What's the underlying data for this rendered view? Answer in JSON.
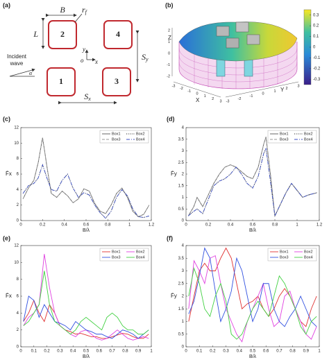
{
  "diagram": {
    "panel_label": "(a)",
    "width_label": "B",
    "radius_label": {
      "base": "r",
      "sub": "f"
    },
    "length_label": "L",
    "boxes": [
      "2",
      "4",
      "1",
      "3"
    ],
    "sy_label": {
      "base": "S",
      "sub": "y"
    },
    "sx_label": {
      "base": "S",
      "sub": "x"
    },
    "axis_y": "y",
    "axis_o": "o",
    "axis_x": "x",
    "incident": [
      "Incident",
      "wave"
    ],
    "angle": "α"
  },
  "surface_plot": {
    "panel_label": "(b)",
    "zlabel": "Z",
    "xlabel": "X",
    "ylabel": "Y",
    "xticks": [
      -3,
      -2,
      -1,
      0,
      1,
      2,
      3
    ],
    "yticks": [
      -3,
      -2,
      -1,
      0,
      1,
      2,
      3
    ],
    "zticks": [
      -2,
      -1,
      0,
      1,
      2
    ],
    "colorbar": {
      "range": [
        -0.35,
        0.35
      ],
      "ticks": [
        0.3,
        0.2,
        0.1,
        0,
        -0.1,
        -0.2,
        -0.3
      ]
    }
  },
  "chart_data": [
    {
      "type": "line",
      "panel_label": "(c)",
      "xlabel": "B/λ",
      "ylabel": "F̄x",
      "xlim": [
        0,
        1.2
      ],
      "ylim": [
        0,
        12
      ],
      "xticks": [
        0,
        0.2,
        0.4,
        0.6,
        0.8,
        1,
        1.2
      ],
      "yticks": [
        0,
        2,
        4,
        6,
        8,
        10,
        12
      ],
      "legend": "upper right",
      "x": [
        0.02,
        0.07,
        0.12,
        0.16,
        0.2,
        0.24,
        0.28,
        0.33,
        0.38,
        0.43,
        0.48,
        0.53,
        0.58,
        0.63,
        0.68,
        0.73,
        0.78,
        0.83,
        0.88,
        0.93,
        0.98,
        1.03,
        1.08,
        1.13,
        1.18
      ],
      "series": [
        {
          "name": "Box1",
          "color": "#555555",
          "style": "solid",
          "values": [
            2.8,
            4.2,
            5.2,
            7.5,
            10.7,
            7,
            3.5,
            3,
            3.8,
            3.2,
            2.3,
            2.8,
            4.1,
            3.8,
            2.2,
            1.2,
            0.9,
            2,
            3.5,
            4.2,
            3,
            1.2,
            0.5,
            0.8,
            2
          ]
        },
        {
          "name": "Box2",
          "color": "#222222",
          "style": "dotted",
          "values": [
            3.5,
            4.5,
            4.8,
            5.5,
            7.2,
            5.5,
            4,
            3.8,
            5.2,
            6,
            4.2,
            3,
            3.6,
            3.3,
            2,
            1,
            0.3,
            1.2,
            3,
            4,
            3.2,
            1.5,
            0.5,
            0.4,
            0.6
          ]
        },
        {
          "name": "Box3",
          "color": "#999999",
          "style": "dashed",
          "values": [
            2.8,
            4.2,
            5.2,
            7.5,
            10.7,
            7,
            3.5,
            3,
            3.8,
            3.2,
            2.3,
            2.8,
            4.1,
            3.8,
            2.2,
            1.2,
            0.9,
            2,
            3.5,
            4.2,
            3,
            1.2,
            0.5,
            0.8,
            2
          ]
        },
        {
          "name": "Box4",
          "color": "#3b4fc4",
          "style": "dashdot",
          "values": [
            3.5,
            4.5,
            4.8,
            5.5,
            7.2,
            5.5,
            4,
            3.8,
            5.2,
            6,
            4.2,
            3,
            3.6,
            3.3,
            2,
            1,
            0.3,
            1.2,
            3,
            4,
            3.2,
            1.5,
            0.5,
            0.4,
            0.6
          ]
        }
      ]
    },
    {
      "type": "line",
      "panel_label": "(d)",
      "xlabel": "B/λ",
      "ylabel": "F̄y",
      "xlim": [
        0,
        1.2
      ],
      "ylim": [
        0,
        4
      ],
      "xticks": [
        0,
        0.2,
        0.4,
        0.6,
        0.8,
        1,
        1.2
      ],
      "yticks": [
        0,
        0.5,
        1,
        1.5,
        2,
        2.5,
        3,
        3.5,
        4
      ],
      "legend": "upper right",
      "x": [
        0.02,
        0.07,
        0.1,
        0.15,
        0.2,
        0.25,
        0.3,
        0.35,
        0.4,
        0.45,
        0.5,
        0.55,
        0.6,
        0.65,
        0.7,
        0.72,
        0.76,
        0.8,
        0.85,
        0.9,
        0.95,
        1,
        1.05,
        1.1,
        1.18
      ],
      "series": [
        {
          "name": "Box1",
          "color": "#555555",
          "style": "solid",
          "values": [
            0.2,
            0.6,
            1,
            0.6,
            1.1,
            1.6,
            2,
            2.3,
            2.4,
            2.3,
            2.1,
            1.9,
            1.8,
            2.3,
            3.3,
            3.6,
            2,
            0.2,
            0.7,
            1.2,
            1.6,
            1.3,
            1,
            1.1,
            1.2
          ]
        },
        {
          "name": "Box2",
          "color": "#222222",
          "style": "dotted",
          "values": [
            0.2,
            0.4,
            0.5,
            0.3,
            0.9,
            1.5,
            1.7,
            1.8,
            2,
            2.3,
            2,
            1.6,
            1.4,
            1.9,
            2.9,
            3.1,
            1.7,
            0.2,
            0.7,
            1.2,
            1.6,
            1.3,
            1,
            1.1,
            1.2
          ]
        },
        {
          "name": "Box3",
          "color": "#999999",
          "style": "dashed",
          "values": [
            0.2,
            0.6,
            1,
            0.6,
            1.1,
            1.6,
            2,
            2.3,
            2.4,
            2.3,
            2.1,
            1.9,
            1.8,
            2.3,
            3.3,
            3.6,
            2,
            0.2,
            0.7,
            1.2,
            1.6,
            1.3,
            1,
            1.1,
            1.2
          ]
        },
        {
          "name": "Box4",
          "color": "#3b4fc4",
          "style": "dashdot",
          "values": [
            0.2,
            0.4,
            0.5,
            0.3,
            0.9,
            1.5,
            1.7,
            1.8,
            2,
            2.3,
            2,
            1.6,
            1.4,
            1.9,
            2.9,
            3.1,
            1.7,
            0.2,
            0.7,
            1.2,
            1.6,
            1.3,
            1,
            1.1,
            1.2
          ]
        }
      ]
    },
    {
      "type": "line",
      "panel_label": "(e)",
      "xlabel": "B/λ",
      "ylabel": "F̄x",
      "xlim": [
        0,
        1
      ],
      "ylim": [
        0,
        12
      ],
      "xticks": [
        0,
        0.1,
        0.2,
        0.3,
        0.4,
        0.5,
        0.6,
        0.7,
        0.8,
        0.9,
        1
      ],
      "yticks": [
        0,
        2,
        4,
        6,
        8,
        10,
        12
      ],
      "legend": "upper right",
      "x": [
        0.02,
        0.06,
        0.1,
        0.14,
        0.18,
        0.22,
        0.26,
        0.3,
        0.34,
        0.38,
        0.42,
        0.46,
        0.5,
        0.54,
        0.58,
        0.62,
        0.66,
        0.7,
        0.74,
        0.78,
        0.82,
        0.86,
        0.9,
        0.94,
        0.98
      ],
      "series": [
        {
          "name": "Box1",
          "color": "#e03030",
          "style": "solid",
          "values": [
            3,
            4,
            5.5,
            4,
            3,
            5,
            4,
            2.5,
            2,
            1.8,
            1.5,
            1.6,
            1.4,
            1.2,
            1.2,
            1,
            1,
            1.2,
            1.4,
            1.6,
            1.5,
            1.2,
            1,
            1,
            1.5
          ]
        },
        {
          "name": "Box2",
          "color": "#e040e0",
          "style": "solid",
          "values": [
            2.5,
            3.5,
            4,
            5,
            11,
            7,
            4,
            2.5,
            2,
            1.5,
            1.2,
            1.8,
            2,
            1.5,
            1,
            0.8,
            1,
            1.5,
            2,
            1.5,
            1,
            0.8,
            1,
            1.2,
            1
          ]
        },
        {
          "name": "Box3",
          "color": "#3050e0",
          "style": "solid",
          "values": [
            3,
            6,
            5.5,
            3.5,
            5,
            4,
            3,
            2.8,
            2.5,
            2,
            3,
            2.5,
            2,
            1.8,
            1.5,
            1.5,
            1.2,
            1,
            1.5,
            2,
            1.8,
            1.5,
            1,
            1.5,
            2
          ]
        },
        {
          "name": "Box4",
          "color": "#40d040",
          "style": "solid",
          "values": [
            2.5,
            3,
            4,
            5,
            9,
            5,
            3,
            2.5,
            2,
            1.5,
            2,
            3,
            3.5,
            3,
            2.5,
            2,
            3.5,
            4,
            3.5,
            2.5,
            2,
            2,
            1.5,
            1.5,
            2
          ]
        }
      ]
    },
    {
      "type": "line",
      "panel_label": "(f)",
      "xlabel": "B/λ",
      "ylabel": "F̄y",
      "xlim": [
        0,
        1
      ],
      "ylim": [
        0,
        4
      ],
      "xticks": [
        0,
        0.1,
        0.2,
        0.3,
        0.4,
        0.5,
        0.6,
        0.7,
        0.8,
        0.9,
        1
      ],
      "yticks": [
        0,
        0.5,
        1,
        1.5,
        2,
        2.5,
        3,
        3.5,
        4
      ],
      "legend": "upper right",
      "x": [
        0.02,
        0.06,
        0.1,
        0.14,
        0.18,
        0.22,
        0.26,
        0.3,
        0.34,
        0.38,
        0.42,
        0.46,
        0.5,
        0.54,
        0.58,
        0.62,
        0.66,
        0.7,
        0.74,
        0.78,
        0.82,
        0.86,
        0.9,
        0.94,
        0.98
      ],
      "series": [
        {
          "name": "Box1",
          "color": "#e03030",
          "style": "solid",
          "values": [
            1,
            2,
            3,
            3.3,
            3,
            3,
            3.5,
            3.9,
            3.5,
            2.5,
            1.5,
            1.7,
            1.8,
            2,
            1.5,
            1.2,
            1.5,
            2,
            2.3,
            2,
            1.5,
            1,
            0.8,
            1.5,
            2
          ]
        },
        {
          "name": "Box2",
          "color": "#e040e0",
          "style": "solid",
          "values": [
            1.5,
            3.4,
            3,
            2.5,
            3.5,
            3.6,
            2.5,
            1.5,
            1,
            0.5,
            0.2,
            1,
            1.5,
            2,
            2.5,
            1.5,
            0.8,
            1,
            2,
            2.2,
            1.5,
            1,
            0.5,
            0.3,
            0.8
          ]
        },
        {
          "name": "Box3",
          "color": "#3050e0",
          "style": "solid",
          "values": [
            1.3,
            1.8,
            2.8,
            3.9,
            3.5,
            2.2,
            1,
            1.5,
            2.2,
            3.5,
            3,
            2,
            1,
            1.5,
            2.5,
            2.5,
            1.5,
            1,
            0.8,
            1.2,
            1.5,
            2,
            1.5,
            1,
            0.8
          ]
        },
        {
          "name": "Box4",
          "color": "#40d040",
          "style": "solid",
          "values": [
            2,
            3.1,
            2.5,
            1.5,
            1.2,
            2,
            2.5,
            1.8,
            0.5,
            0.3,
            0.5,
            1,
            1.5,
            1.8,
            1.5,
            1.2,
            2,
            2.8,
            2.5,
            2,
            1.5,
            0.8,
            0.5,
            1,
            1.2
          ]
        }
      ]
    }
  ]
}
